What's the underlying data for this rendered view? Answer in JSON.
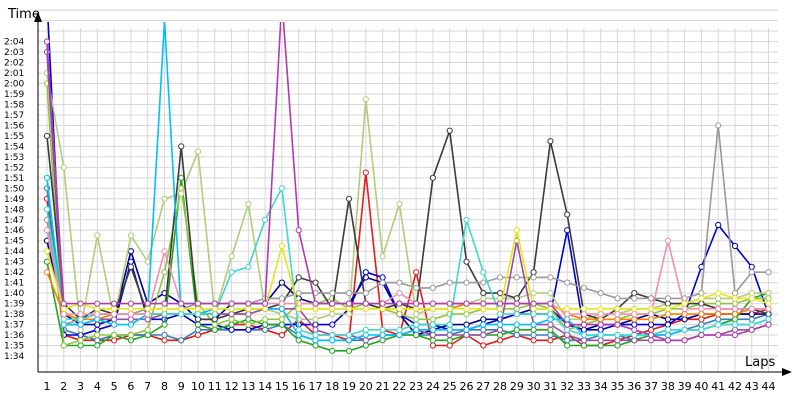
{
  "chart_data": {
    "type": "line",
    "ylabel": "Time",
    "xlabel": "Laps",
    "x": [
      1,
      2,
      3,
      4,
      5,
      6,
      7,
      8,
      9,
      10,
      11,
      12,
      13,
      14,
      15,
      16,
      17,
      18,
      19,
      20,
      21,
      22,
      23,
      24,
      25,
      26,
      27,
      28,
      29,
      30,
      31,
      32,
      33,
      34,
      35,
      36,
      37,
      38,
      39,
      40,
      41,
      42,
      43,
      44
    ],
    "x_tick_labels": [
      "1",
      "2",
      "3",
      "4",
      "5",
      "6",
      "7",
      "8",
      "9",
      "10",
      "11",
      "12",
      "13",
      "14",
      "15",
      "16",
      "17",
      "18",
      "19",
      "20",
      "21",
      "22",
      "23",
      "24",
      "25",
      "26",
      "27",
      "28",
      "29",
      "30",
      "31",
      "32",
      "33",
      "34",
      "35",
      "36",
      "37",
      "38",
      "39",
      "40",
      "41",
      "42",
      "43",
      "44"
    ],
    "y_tick_labels": [
      "1:34",
      "1:35",
      "1:36",
      "1:37",
      "1:38",
      "1:39",
      "1:40",
      "1:41",
      "1:42",
      "1:43",
      "1:44",
      "1:45",
      "1:46",
      "1:47",
      "1:48",
      "1:49",
      "1:50",
      "1:51",
      "1:52",
      "1:53",
      "1:54",
      "1:55",
      "1:56",
      "1:57",
      "1:58",
      "1:59",
      "2:00",
      "2:01",
      "2:02",
      "2:03",
      "2:04"
    ],
    "y_tick_seconds": [
      94,
      95,
      96,
      97,
      98,
      99,
      100,
      101,
      102,
      103,
      104,
      105,
      106,
      107,
      108,
      109,
      110,
      111,
      112,
      113,
      114,
      115,
      116,
      117,
      118,
      119,
      120,
      121,
      122,
      123,
      124
    ],
    "ylim_seconds": [
      93.5,
      127
    ],
    "xlim": [
      0.5,
      44.5
    ],
    "grid": true,
    "series": [
      {
        "color": "#e41a1c",
        "values": [
          109,
          96,
          95.5,
          95.5,
          95.5,
          96,
          96,
          95.5,
          95.5,
          96,
          96.5,
          97,
          97,
          96.5,
          96,
          97.5,
          96,
          96,
          95.5,
          111.5,
          96.5,
          96,
          102,
          95,
          95,
          96,
          95,
          95.5,
          96,
          95.5,
          95.5,
          96,
          95,
          95,
          95.5,
          96,
          96.5,
          97,
          97.5,
          97.5,
          98,
          98,
          98,
          98.5
        ]
      },
      {
        "color": "#377eb8",
        "values": [
          110,
          96.5,
          96,
          95.5,
          96,
          96,
          96,
          96,
          95.5,
          96.5,
          96.5,
          96.5,
          96.5,
          96.5,
          97,
          96,
          95.5,
          95.5,
          95.5,
          95.5,
          96,
          96,
          96,
          96,
          96,
          96.5,
          96.5,
          96.5,
          96,
          96,
          96,
          95.5,
          95.5,
          96,
          96,
          95.5,
          96,
          96.5,
          96.5,
          97,
          97.5,
          97.5,
          97.5,
          98
        ]
      },
      {
        "color": "#00008b",
        "values": [
          105,
          98,
          97,
          97,
          97.5,
          104,
          99,
          100,
          99,
          97.5,
          97.5,
          99,
          99,
          99,
          101,
          99.5,
          99,
          99,
          99,
          101.5,
          101,
          98,
          96,
          96.5,
          97,
          97,
          97.5,
          97.5,
          98,
          98.5,
          98.5,
          97,
          96.5,
          97,
          97,
          97.5,
          98,
          97.5,
          97.5,
          98,
          98,
          98,
          98,
          98
        ]
      },
      {
        "color": "#0000cd",
        "values": [
          128,
          96,
          96,
          96.5,
          97,
          103,
          97.5,
          97.5,
          98,
          97,
          97,
          96.5,
          96.5,
          97,
          97,
          97,
          97,
          97,
          98.5,
          102,
          101.5,
          98,
          97,
          97,
          96.5,
          96.5,
          97,
          97.5,
          98,
          98,
          98,
          106,
          96.5,
          96.5,
          97,
          97,
          97,
          97,
          98,
          102.5,
          106.5,
          104.5,
          102.5,
          98
        ]
      },
      {
        "color": "#1fa81f",
        "values": [
          103,
          95,
          95,
          95,
          96,
          95.5,
          96,
          97,
          111,
          97,
          96.5,
          97,
          97.5,
          97,
          97,
          95.5,
          95,
          94.5,
          94.5,
          95,
          95.5,
          96,
          96,
          95.5,
          95.5,
          96,
          96,
          96,
          96.5,
          96.5,
          96.5,
          95,
          95,
          95,
          95,
          95.5,
          96,
          96,
          96.5,
          96.5,
          97,
          97.5,
          99.5,
          100
        ]
      },
      {
        "color": "#8dc63f",
        "values": [
          120,
          95,
          95.5,
          96,
          96,
          96,
          96.5,
          102,
          110,
          99,
          97,
          97.5,
          97,
          97.5,
          97.5,
          99,
          99,
          99.5,
          98.5,
          99,
          98.5,
          98,
          97.5,
          97.5,
          98,
          98,
          98.5,
          98.5,
          98.5,
          99,
          98.5,
          96.5,
          97,
          97.5,
          97.5,
          98,
          98,
          98.5,
          98.5,
          99,
          99,
          99,
          99.5,
          99.5
        ]
      },
      {
        "color": "#b2cc7a",
        "values": [
          121,
          112,
          96.5,
          105.5,
          97.5,
          105.5,
          103,
          109,
          109.5,
          113.5,
          98,
          103.5,
          108.5,
          98.5,
          98,
          97.5,
          97.5,
          98,
          98,
          118.5,
          103.5,
          108.5,
          98,
          98.5,
          98.5,
          99,
          99.5,
          99.5,
          99.5,
          100,
          100,
          97.5,
          97.5,
          98,
          98,
          98.5,
          98.5,
          99,
          99,
          99.5,
          99.5,
          99.5,
          100,
          100
        ]
      },
      {
        "color": "#3b3b3b",
        "values": [
          115,
          99,
          97.5,
          98.5,
          98,
          102.5,
          98,
          98,
          114,
          97.5,
          97.5,
          98,
          98.5,
          98.5,
          99,
          101.5,
          101,
          98.5,
          109,
          99,
          98.5,
          99,
          98.5,
          111,
          115.5,
          103,
          100,
          100,
          99.5,
          102,
          114.5,
          107.5,
          98,
          97.5,
          98.5,
          100,
          99.5,
          99,
          99,
          99,
          98.5,
          98.5,
          98.5,
          98
        ]
      },
      {
        "color": "#999999",
        "values": [
          107,
          97,
          97.5,
          98,
          98,
          98,
          98.5,
          98.5,
          98.5,
          99,
          99,
          99,
          99,
          99.5,
          99.5,
          100,
          100,
          100,
          100,
          100,
          101,
          101,
          100.5,
          100.5,
          101,
          101,
          101,
          101.5,
          101.5,
          101.5,
          101.5,
          101,
          100.5,
          100,
          99.5,
          99.5,
          99.5,
          99.5,
          99.5,
          100,
          116,
          100,
          102,
          102
        ]
      },
      {
        "color": "#ff7f00",
        "values": [
          102,
          98,
          97.5,
          97.5,
          98,
          98,
          98,
          98,
          98,
          98,
          98,
          98,
          98,
          98.5,
          98.5,
          98.5,
          98.5,
          98.5,
          98.5,
          98.5,
          98.5,
          98.5,
          98.5,
          98.5,
          98.5,
          99,
          99,
          99,
          99,
          99,
          99,
          98,
          97.5,
          97.5,
          97.5,
          97.5,
          97.5,
          98,
          98,
          98,
          98,
          98,
          98.5,
          98.5
        ]
      },
      {
        "color": "#984ea3",
        "values": [
          123,
          97,
          97,
          97.5,
          97.5,
          97.5,
          97.5,
          98,
          98,
          98,
          98,
          98,
          98,
          98.5,
          98.5,
          98.5,
          96.5,
          96,
          96,
          95.5,
          96,
          96,
          96.5,
          96,
          96,
          96,
          96,
          96.5,
          105,
          97,
          97,
          96,
          95.5,
          95.5,
          95.5,
          95.5,
          95.5,
          95.5,
          95.5,
          96,
          96,
          96.5,
          96.5,
          97
        ]
      },
      {
        "color": "#00bfff",
        "values": [
          111,
          97,
          97,
          97.5,
          97,
          97,
          98,
          126,
          98,
          98,
          98.5,
          98.5,
          98.5,
          98.5,
          98.5,
          96,
          95.5,
          95.5,
          95.5,
          96,
          96,
          96,
          96.5,
          96.5,
          96.5,
          96.5,
          97,
          97,
          97,
          97,
          97.5,
          97.5,
          96,
          96,
          96,
          96,
          96,
          96,
          96.5,
          96.5,
          97,
          97,
          97,
          97.5
        ]
      },
      {
        "color": "#40d8d0",
        "values": [
          108,
          97.5,
          97.5,
          98,
          98,
          98,
          98,
          98,
          98,
          98,
          98,
          102,
          102.5,
          107,
          110,
          96.5,
          96,
          96,
          96,
          96.5,
          96.5,
          96.5,
          97,
          97,
          97,
          107,
          102,
          98,
          98,
          98,
          98,
          96.5,
          96,
          96,
          96,
          96,
          96,
          96.5,
          96.5,
          96.5,
          97,
          97,
          97,
          97.5
        ]
      },
      {
        "color": "#f48fb1",
        "values": [
          106,
          98,
          98,
          98,
          98,
          98,
          98,
          104,
          99,
          99,
          99,
          99,
          99,
          99,
          99,
          99,
          99,
          99,
          99,
          99,
          99,
          100,
          99,
          99,
          99,
          99,
          99,
          99,
          99,
          99,
          99,
          98,
          98,
          98,
          98,
          98,
          98,
          105,
          98.5,
          98.5,
          98.5,
          98.5,
          98.5,
          98.5
        ]
      },
      {
        "color": "#e6e61a",
        "values": [
          104,
          98.5,
          99,
          98.5,
          98.5,
          98.5,
          98.5,
          98.5,
          98.5,
          98.5,
          98.5,
          98.5,
          98.5,
          98.5,
          104.5,
          98.5,
          98.5,
          98.5,
          98.5,
          98.5,
          98.5,
          98.5,
          98.5,
          98.5,
          98.5,
          98.5,
          98.5,
          98.5,
          106,
          98.5,
          98.5,
          98.5,
          98.5,
          98.5,
          98.5,
          98.5,
          98.5,
          98.5,
          99,
          99.5,
          100,
          99.5,
          99.5,
          99
        ]
      },
      {
        "color": "#b03ab0",
        "values": [
          124,
          99,
          99,
          99,
          99,
          99,
          99,
          99,
          99,
          99,
          99,
          99,
          99,
          99,
          128,
          106,
          99,
          99,
          99,
          99,
          99,
          99,
          99,
          99,
          99,
          99,
          99,
          99,
          99,
          99,
          99,
          97,
          97,
          97,
          97,
          96.5,
          96,
          95.5,
          95.5,
          96,
          96,
          96,
          96.5,
          97
        ]
      }
    ]
  }
}
